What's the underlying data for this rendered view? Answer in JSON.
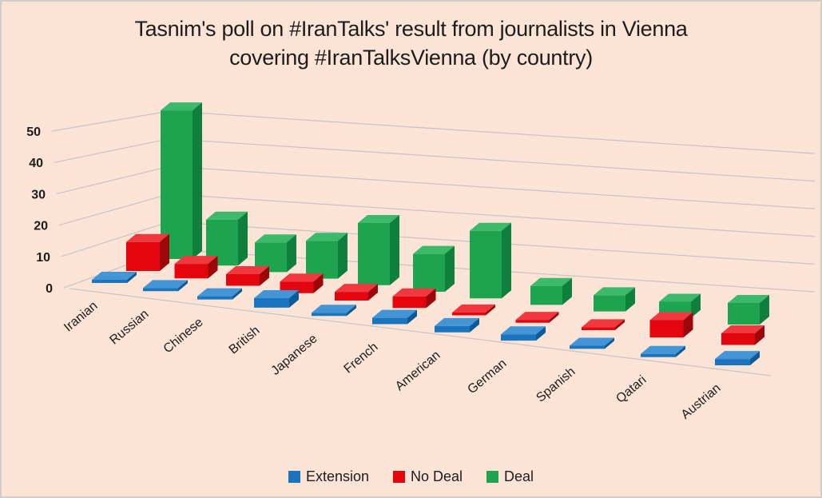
{
  "title": {
    "line1": "Tasnim's poll on #IranTalks' result from journalists in Vienna",
    "line2": "covering #IranTalksVienna (by country)"
  },
  "colors": {
    "background": "#FBE4D5",
    "border": "#CFCCCA",
    "gridline": "#C8C6C4",
    "text": "#1C1C1C"
  },
  "chart_data": {
    "type": "bar",
    "style": "3d-column",
    "title": "Tasnim's poll on #IranTalks' result from journalists in Vienna covering #IranTalksVienna (by country)",
    "xlabel": "",
    "ylabel": "",
    "categories": [
      "Iranian",
      "Russian",
      "Chinese",
      "British",
      "Japanese",
      "French",
      "American",
      "German",
      "Spanish",
      "Qatari",
      "Austrian"
    ],
    "series": [
      {
        "name": "Extension",
        "color": "#1B75BE",
        "color_top": "#4395D6",
        "color_side": "#0D5B96",
        "values": [
          1,
          1,
          1,
          3,
          1,
          2,
          2,
          2,
          1,
          1,
          2
        ]
      },
      {
        "name": "No Deal",
        "color": "#E4060F",
        "color_top": "#F0393E",
        "color_side": "#9C070C",
        "values": [
          10,
          5,
          4,
          4,
          3,
          4,
          1,
          1,
          1,
          6,
          4
        ]
      },
      {
        "name": "Deal",
        "color": "#1EA34F",
        "color_top": "#3CB96A",
        "color_side": "#0E7F3C",
        "values": [
          55,
          17,
          11,
          14,
          23,
          14,
          25,
          7,
          6,
          6,
          8
        ]
      }
    ],
    "y_axis": {
      "min": 0,
      "max": 50,
      "step": 10,
      "ticks": [
        0,
        10,
        20,
        30,
        40,
        50
      ]
    },
    "grid": true,
    "legend_position": "bottom"
  }
}
